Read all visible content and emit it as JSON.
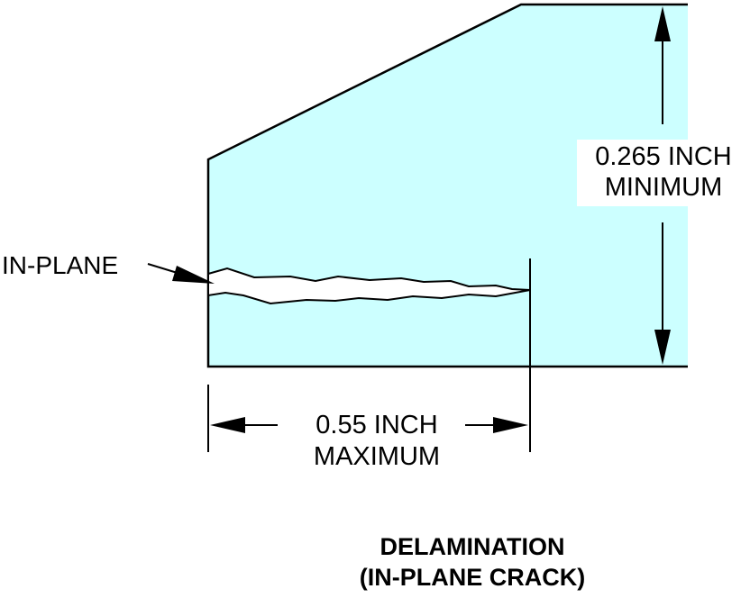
{
  "diagram": {
    "colors": {
      "part_fill": "#ccffff",
      "line": "#000000",
      "background": "#ffffff"
    },
    "in_plane_label": "IN-PLANE",
    "thickness_dimension": {
      "line1": "0.265 INCH",
      "line2": "MINIMUM"
    },
    "length_dimension": {
      "line1": "0.55 INCH",
      "line2": "MAXIMUM"
    },
    "caption": {
      "line1": "DELAMINATION",
      "line2": "(IN-PLANE CRACK)"
    }
  }
}
